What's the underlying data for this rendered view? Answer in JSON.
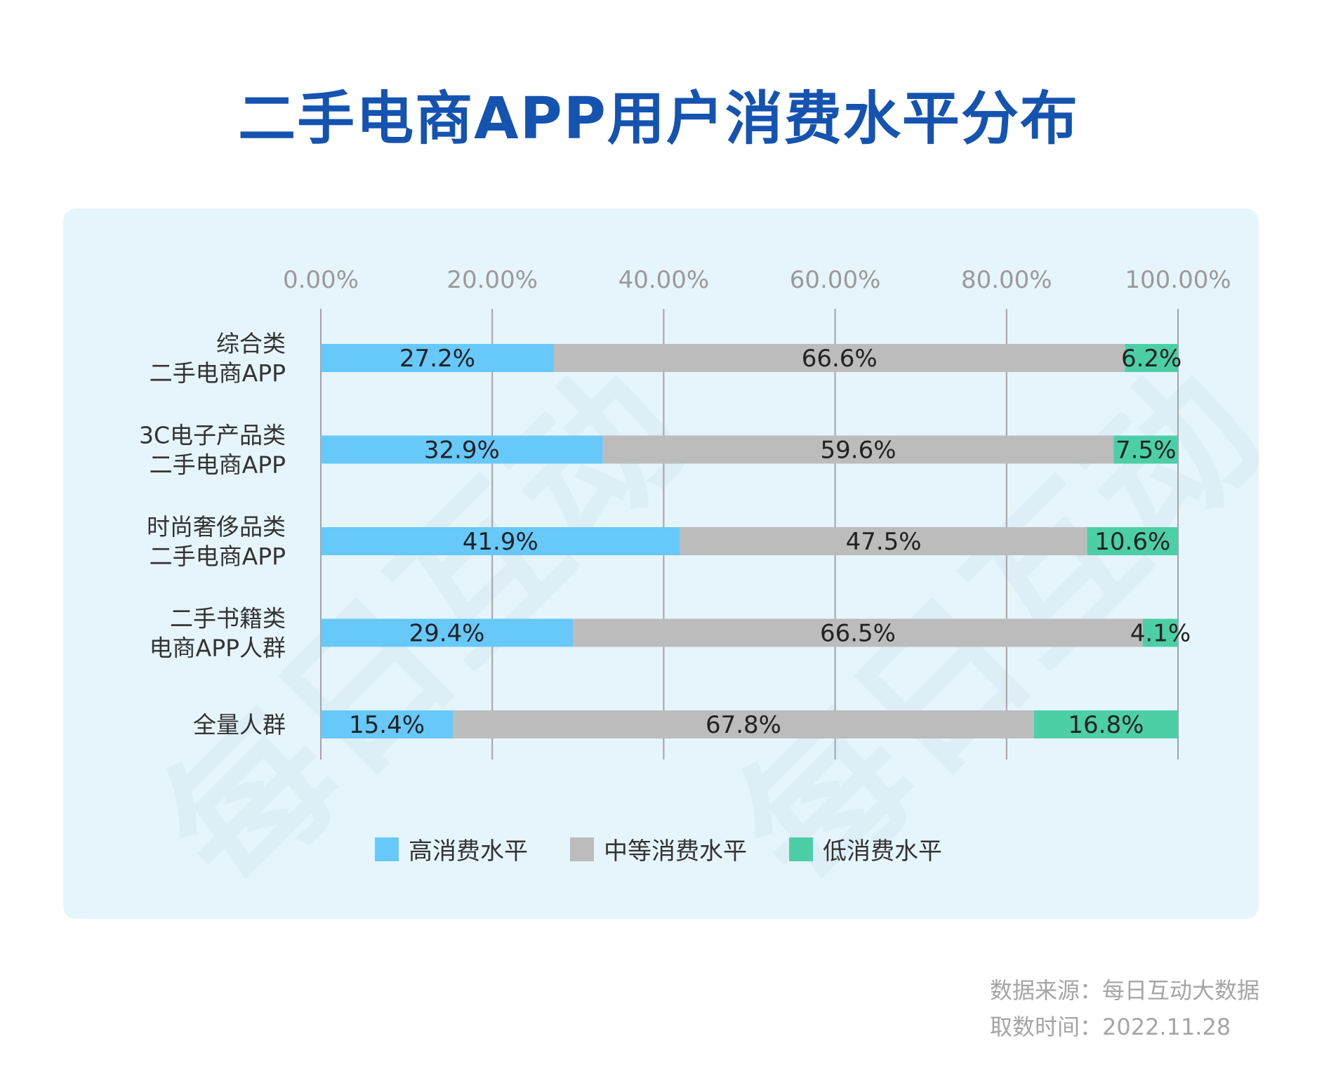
{
  "title": "二手电商APP用户消费水平分布",
  "watermark_text": "每日互动",
  "source": {
    "line1": "数据来源：每日互动大数据",
    "line2": "取数时间：2022.11.28"
  },
  "colors": {
    "high": "#67c8fa",
    "mid": "#bcbcbc",
    "low": "#4ccfa6",
    "title": "#1553b0",
    "panel": "#e6f5fc"
  },
  "chart_data": {
    "type": "bar",
    "orientation": "horizontal",
    "stacked": true,
    "xlim": [
      0,
      100
    ],
    "x_ticks": [
      "0.00%",
      "20.00%",
      "40.00%",
      "60.00%",
      "80.00%",
      "100.00%"
    ],
    "x_tick_values": [
      0,
      20,
      40,
      60,
      80,
      100
    ],
    "x_axis_position": "top",
    "grid": true,
    "legend_position": "bottom",
    "categories": [
      [
        "综合类",
        "二手电商APP"
      ],
      [
        "3C电子产品类",
        "二手电商APP"
      ],
      [
        "时尚奢侈品类",
        "二手电商APP"
      ],
      [
        "二手书籍类",
        "电商APP人群"
      ],
      [
        "全量人群"
      ]
    ],
    "series": [
      {
        "name": "高消费水平",
        "color_key": "high",
        "values": [
          27.2,
          32.9,
          41.9,
          29.4,
          15.4
        ],
        "labels": [
          "27.2%",
          "32.9%",
          "41.9%",
          "29.4%",
          "15.4%"
        ]
      },
      {
        "name": "中等消费水平",
        "color_key": "mid",
        "values": [
          66.6,
          59.6,
          47.5,
          66.5,
          67.8
        ],
        "labels": [
          "66.6%",
          "59.6%",
          "47.5%",
          "66.5%",
          "67.8%"
        ]
      },
      {
        "name": "低消费水平",
        "color_key": "low",
        "values": [
          6.2,
          7.5,
          10.6,
          4.1,
          16.8
        ],
        "labels": [
          "6.2%",
          "7.5%",
          "10.6%",
          "4.1%",
          "16.8%"
        ]
      }
    ]
  }
}
